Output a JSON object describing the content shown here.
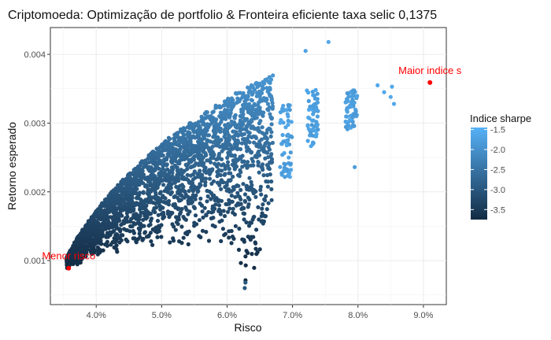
{
  "chart_data": {
    "type": "scatter",
    "title": "Criptomoeda: Optimização de portfolio & Fronteira eficiente taxa selic 0,1375",
    "xlabel": "Risco",
    "ylabel": "Retorno esperado",
    "x_unit": "percent",
    "xlim": [
      3.3,
      9.35
    ],
    "ylim": [
      0.00036,
      0.00439
    ],
    "x_ticks": [
      4.0,
      5.0,
      6.0,
      7.0,
      8.0,
      9.0
    ],
    "x_tick_labels": [
      "4.0%",
      "5.0%",
      "6.0%",
      "7.0%",
      "8.0%",
      "9.0%"
    ],
    "y_ticks": [
      0.001,
      0.002,
      0.003,
      0.004
    ],
    "y_tick_labels": [
      "0.001",
      "0.002",
      "0.003",
      "0.004"
    ],
    "grid": true,
    "color_by": "sharpe",
    "legend": {
      "title": "Indice sharpe",
      "placement": "right",
      "range": [
        -3.75,
        -1.45
      ],
      "breaks": [
        -1.5,
        -2.0,
        -2.5,
        -3.0,
        -3.5
      ],
      "break_labels": [
        "-1.5",
        "-2.0",
        "-2.5",
        "-3.0",
        "-3.5"
      ],
      "low_color": "#132B43",
      "high_color": "#56B1F7"
    },
    "frontier": {
      "x": [
        3.55,
        3.7,
        3.9,
        4.1,
        4.3,
        4.5,
        4.7,
        4.9,
        5.1,
        5.3,
        5.5,
        5.7,
        5.9,
        6.1,
        6.3,
        6.5,
        6.7
      ],
      "y": [
        0.00105,
        0.00132,
        0.0016,
        0.00185,
        0.00207,
        0.00227,
        0.00245,
        0.00262,
        0.00278,
        0.00292,
        0.00306,
        0.00318,
        0.0033,
        0.00342,
        0.00352,
        0.00361,
        0.0037
      ]
    },
    "lower_bound": {
      "x": [
        3.55,
        4.2,
        4.9,
        5.6,
        6.0,
        6.25,
        6.3,
        6.5,
        6.8,
        7.0
      ],
      "y": [
        0.00088,
        0.0011,
        0.0012,
        0.00125,
        0.0012,
        0.0008,
        0.0006,
        0.0011,
        0.0018,
        0.0023
      ]
    },
    "extra_points": [
      {
        "x": 7.55,
        "y": 0.00418,
        "sharpe": -1.6
      },
      {
        "x": 7.2,
        "y": 0.00405,
        "sharpe": -1.7
      },
      {
        "x": 7.95,
        "y": 0.00236,
        "sharpe": -1.8
      },
      {
        "x": 8.3,
        "y": 0.00355,
        "sharpe": -1.6
      },
      {
        "x": 8.4,
        "y": 0.00345,
        "sharpe": -1.6
      },
      {
        "x": 8.5,
        "y": 0.00338,
        "sharpe": -1.6
      },
      {
        "x": 8.52,
        "y": 0.00353,
        "sharpe": -1.6
      },
      {
        "x": 8.55,
        "y": 0.00328,
        "sharpe": -1.6
      },
      {
        "x": 6.27,
        "y": 0.0006,
        "sharpe": -3.0
      },
      {
        "x": 6.28,
        "y": 0.00068,
        "sharpe": -3.0
      }
    ],
    "highlights": [
      {
        "label": "Maior indice s",
        "x": 9.1,
        "y": 0.00359,
        "color": "#ff0000"
      },
      {
        "label": "Menor risco",
        "x": 3.58,
        "y": 0.00089,
        "color": "#ff0000"
      }
    ]
  }
}
